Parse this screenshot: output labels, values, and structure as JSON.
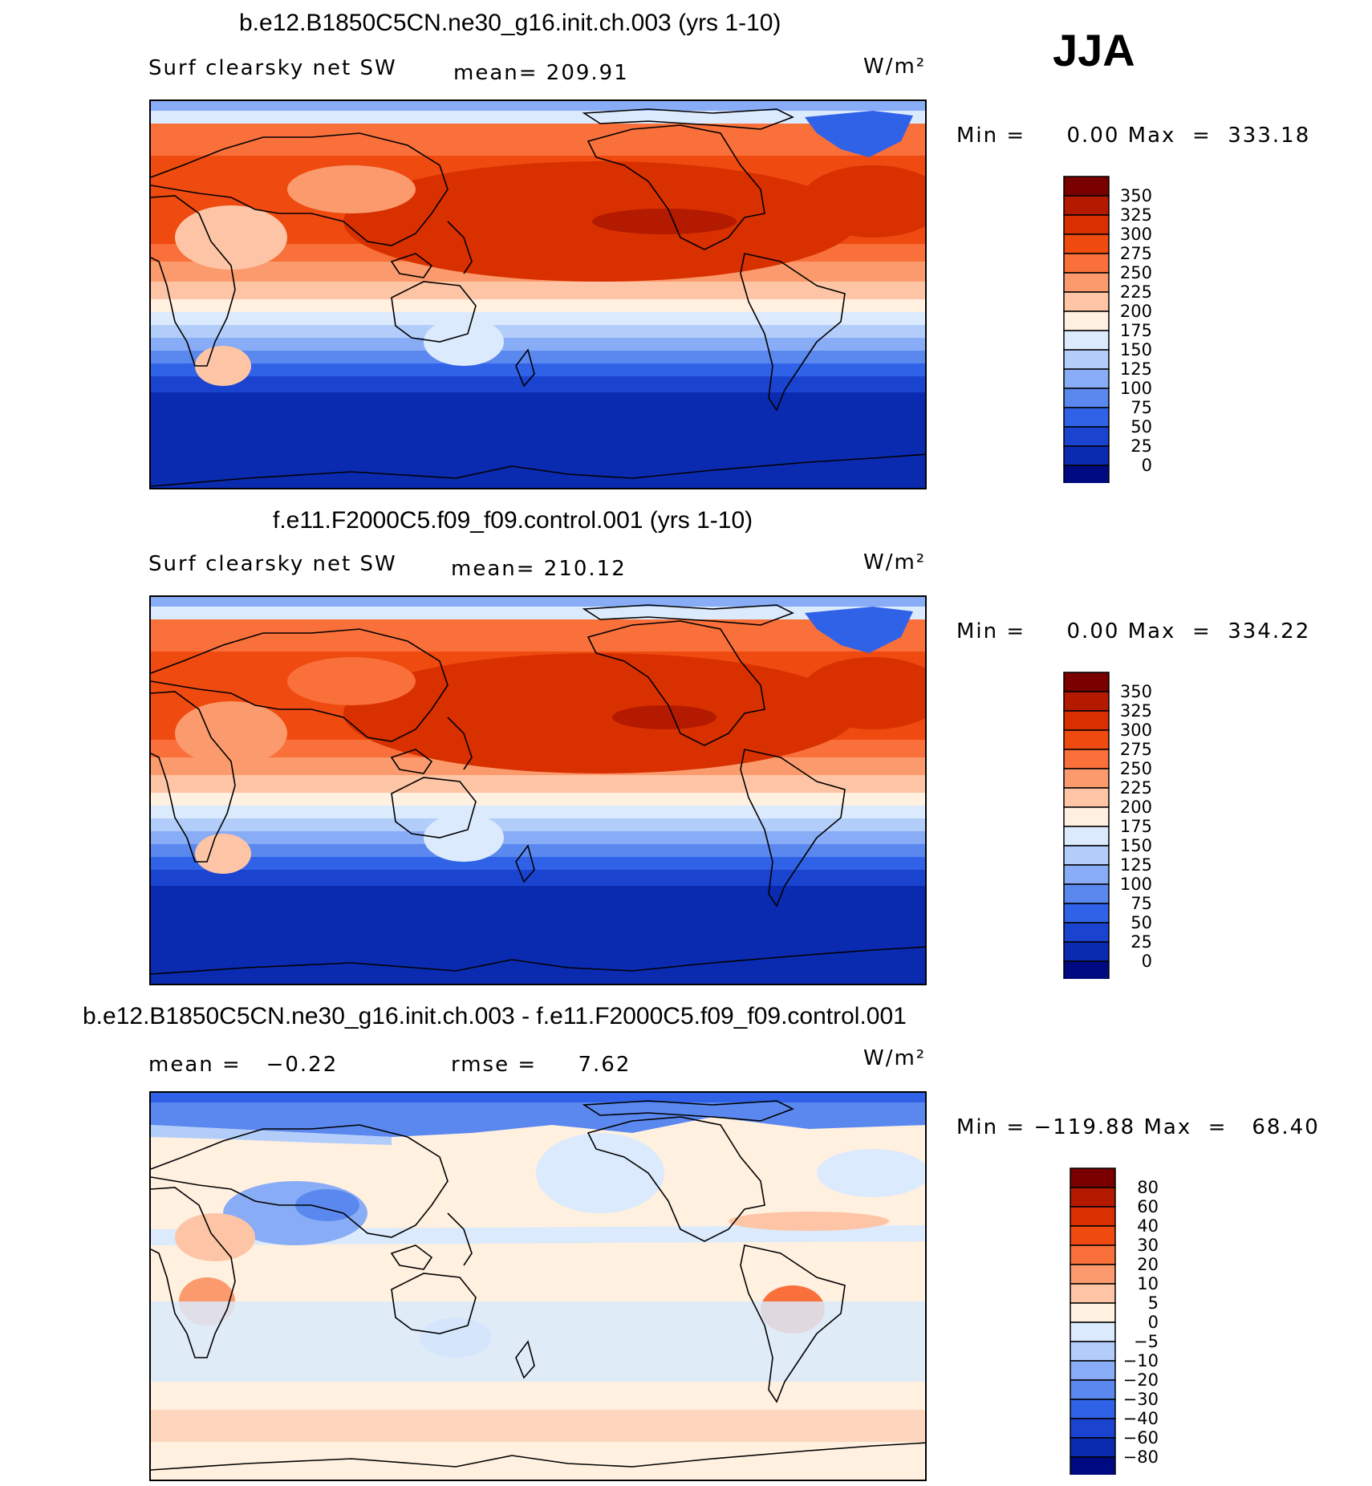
{
  "season": "JJA",
  "chart_data": [
    {
      "type": "heatmap",
      "title": "b.e12.B1850C5CN.ne30_g16.init.ch.003 (yrs 1-10)",
      "left_label": "Surf clearsky net SW",
      "center_label": "mean= 209.91",
      "units_label": "W/m²",
      "stats": "Min =     0.00 Max  =  333.18",
      "levels": [
        "350",
        "325",
        "300",
        "275",
        "250",
        "225",
        "200",
        "175",
        "150",
        "125",
        "100",
        "75",
        "50",
        "25",
        "0"
      ],
      "colors": [
        "#7a0000",
        "#b31a00",
        "#d93000",
        "#ef4a10",
        "#f9703a",
        "#fb9a6c",
        "#fdc5a5",
        "#fff0e0",
        "#dbeafc",
        "#b3cdfa",
        "#88acf5",
        "#5a88ef",
        "#3062e8",
        "#1a44d0",
        "#0a2bb0",
        "#000a80"
      ]
    },
    {
      "type": "heatmap",
      "title": "f.e11.F2000C5.f09_f09.control.001 (yrs 1-10)",
      "left_label": "Surf clearsky net SW",
      "center_label": "mean= 210.12",
      "units_label": "W/m²",
      "stats": "Min =     0.00 Max  =  334.22",
      "levels": [
        "350",
        "325",
        "300",
        "275",
        "250",
        "225",
        "200",
        "175",
        "150",
        "125",
        "100",
        "75",
        "50",
        "25",
        "0"
      ],
      "colors": [
        "#7a0000",
        "#b31a00",
        "#d93000",
        "#ef4a10",
        "#f9703a",
        "#fb9a6c",
        "#fdc5a5",
        "#fff0e0",
        "#dbeafc",
        "#b3cdfa",
        "#88acf5",
        "#5a88ef",
        "#3062e8",
        "#1a44d0",
        "#0a2bb0",
        "#000a80"
      ]
    },
    {
      "type": "heatmap",
      "title": "b.e12.B1850C5CN.ne30_g16.init.ch.003 - f.e11.F2000C5.f09_f09.control.001",
      "left_label": "mean =   −0.22",
      "center_label": "rmse =     7.62",
      "units_label": "W/m²",
      "stats": "Min = −119.88 Max  =   68.40",
      "levels": [
        "80",
        "60",
        "40",
        "30",
        "20",
        "10",
        "5",
        "0",
        "−5",
        "−10",
        "−20",
        "−30",
        "−40",
        "−60",
        "−80"
      ],
      "colors": [
        "#7a0000",
        "#b31a00",
        "#d93000",
        "#ef4a10",
        "#f9703a",
        "#fb9a6c",
        "#fdc5a5",
        "#fff0e0",
        "#dbeafc",
        "#b3cdfa",
        "#88acf5",
        "#5a88ef",
        "#3062e8",
        "#1a44d0",
        "#0a2bb0",
        "#000a80"
      ]
    }
  ]
}
